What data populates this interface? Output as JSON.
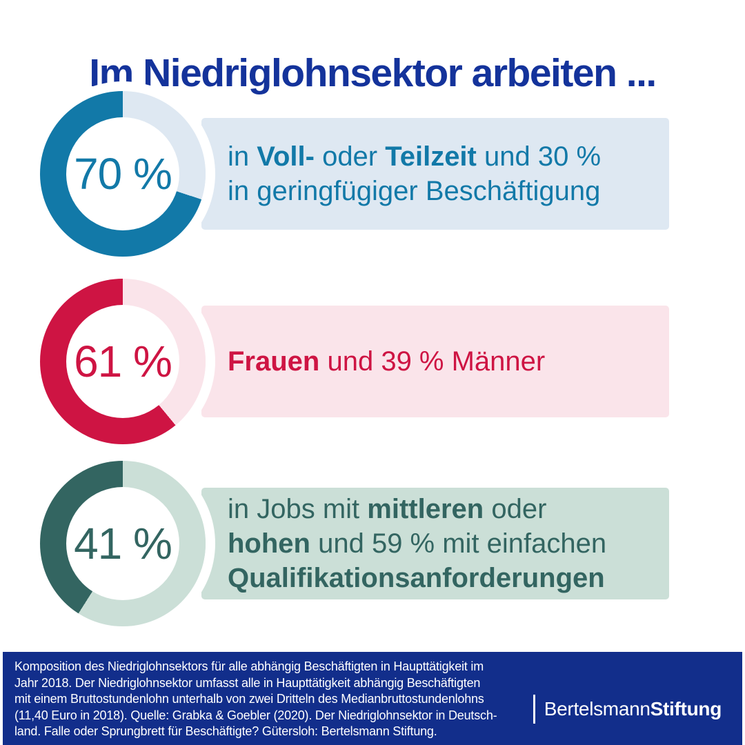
{
  "title": "Im Niedriglohnsektor arbeiten ...",
  "colors": {
    "title_navy": "#14339B",
    "footer_navy": "#122E8B",
    "blue": "#1279A8",
    "light_blue": "#DEE8F2",
    "red": "#CE1443",
    "light_pink": "#FAE4EA",
    "teal": "#336561",
    "light_mint": "#CBDFD7",
    "white": "#FFFFFF"
  },
  "rows": [
    {
      "percent_label": "70 %",
      "fill_percent": 70,
      "remainder_percent": 30,
      "fill_color": "#1279A8",
      "track_color": "#DEE8F2",
      "box_color": "#DEE8F2",
      "text_color": "#1279A8",
      "lines": [
        [
          {
            "t": "in ",
            "b": false
          },
          {
            "t": "Voll-",
            "b": true
          },
          {
            "t": " oder ",
            "b": false
          },
          {
            "t": "Teilzeit",
            "b": true
          },
          {
            "t": " und 30 %",
            "b": false
          }
        ],
        [
          {
            "t": "in geringfügiger Beschäftigung",
            "b": false
          }
        ]
      ]
    },
    {
      "percent_label": "61 %",
      "fill_percent": 61,
      "remainder_percent": 39,
      "fill_color": "#CE1443",
      "track_color": "#FAE4EA",
      "box_color": "#FAE4EA",
      "text_color": "#CE1443",
      "lines": [
        [
          {
            "t": "Frauen",
            "b": true
          },
          {
            "t": " und 39 % Männer",
            "b": false
          }
        ]
      ]
    },
    {
      "percent_label": "41 %",
      "fill_percent": 41,
      "remainder_percent": 59,
      "fill_color": "#336561",
      "track_color": "#CBDFD7",
      "box_color": "#CBDFD7",
      "text_color": "#336561",
      "lines": [
        [
          {
            "t": "in Jobs mit ",
            "b": false
          },
          {
            "t": "mittleren",
            "b": true
          },
          {
            "t": " oder",
            "b": false
          }
        ],
        [
          {
            "t": "hohen",
            "b": true
          },
          {
            "t": " und 59 % mit einfachen",
            "b": false
          }
        ],
        [
          {
            "t": "Qualifikationsanforderungen",
            "b": true
          }
        ]
      ]
    }
  ],
  "footer": {
    "source_text": "Komposition des Niedriglohnsektors für alle abhängig Beschäftigten in Haupttätigkeit im\nJahr 2018. Der Niedriglohnsektor umfasst alle in Haupttätigkeit abhängig Beschäftigten\nmit einem Bruttostundenlohn unterhalb von zwei Dritteln des Medianbruttostundenlohns\n(11,40 Euro in 2018). Quelle: Grabka & Goebler (2020). Der Niedriglohnsektor in Deutsch-\nland. Falle oder Sprungbrett für Beschäftigte? Gütersloh: Bertelsmann Stiftung.",
    "brand": {
      "name_regular": "Bertelsmann",
      "name_bold": "Stiftung"
    }
  },
  "chart_data": [
    {
      "type": "pie",
      "title": "Beschäftigungsform im Niedriglohnsektor",
      "labels": [
        "Voll- oder Teilzeit",
        "geringfügige Beschäftigung"
      ],
      "values": [
        70,
        30
      ],
      "colors": [
        "#1279A8",
        "#DEE8F2"
      ],
      "center_label": "70 %"
    },
    {
      "type": "pie",
      "title": "Geschlecht im Niedriglohnsektor",
      "labels": [
        "Frauen",
        "Männer"
      ],
      "values": [
        61,
        39
      ],
      "colors": [
        "#CE1443",
        "#FAE4EA"
      ],
      "center_label": "61 %"
    },
    {
      "type": "pie",
      "title": "Qualifikationsanforderungen im Niedriglohnsektor",
      "labels": [
        "mittlere oder hohe Qualifikationsanforderungen",
        "einfache Qualifikationsanforderungen"
      ],
      "values": [
        41,
        59
      ],
      "colors": [
        "#336561",
        "#CBDFD7"
      ],
      "center_label": "41 %"
    }
  ]
}
